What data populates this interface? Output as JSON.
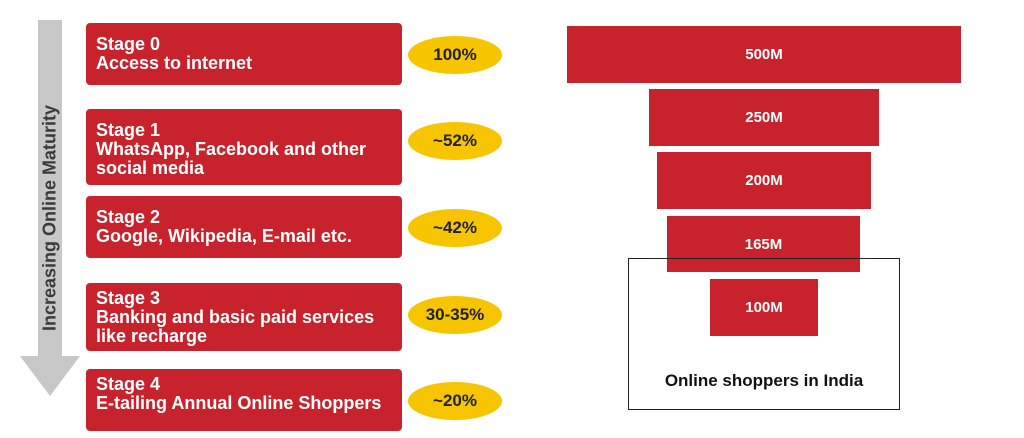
{
  "arrow": {
    "label": "Increasing Online Maturity",
    "color": "#c7c7c7"
  },
  "stages": [
    {
      "title": "Stage 0",
      "desc": "Access to internet",
      "pct": "100%"
    },
    {
      "title": "Stage 1",
      "desc": "WhatsApp, Facebook and other social media",
      "pct": "~52%"
    },
    {
      "title": "Stage 2",
      "desc": "Google, Wikipedia, E-mail etc.",
      "pct": "~42%"
    },
    {
      "title": "Stage 3",
      "desc": "Banking and basic paid services like recharge",
      "pct": "30-35%"
    },
    {
      "title": "Stage 4",
      "desc": "E-tailing Annual Online Shoppers",
      "pct": "~20%"
    }
  ],
  "funnel": {
    "bars": [
      {
        "label": "500M",
        "value": 500
      },
      {
        "label": "250M",
        "value": 250
      },
      {
        "label": "200M",
        "value": 200
      },
      {
        "label": "165M",
        "value": 165
      },
      {
        "label": "100M",
        "value": 100
      }
    ],
    "caption": "Online shoppers in India"
  },
  "colors": {
    "stage_red": "#c8232c",
    "pct_yellow": "#f7c500"
  }
}
